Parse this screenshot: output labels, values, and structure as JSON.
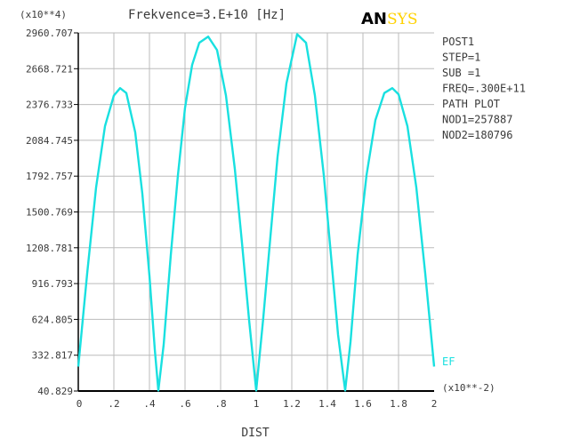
{
  "header": {
    "scale_label": "(x10**4)",
    "title": "Frekvence=3.E+10 [Hz]",
    "logo_left": "AN",
    "logo_right": "SYS"
  },
  "info_panel": {
    "lines": [
      "POST1",
      "STEP=1",
      "SUB =1",
      "FREQ=.300E+11",
      "PATH PLOT",
      "NOD1=257887",
      "NOD2=180796"
    ]
  },
  "colors": {
    "curve": "#19e0e0",
    "axis": "#000000",
    "grid": "#bbbbbb",
    "text": "#3a3a3a",
    "logo_dark": "#000000",
    "logo_accent": "#ffd200"
  },
  "chart_data": {
    "type": "line",
    "xlabel": "DIST",
    "x_scale_label": "(x10**-2)",
    "xlim": [
      0,
      2
    ],
    "ylim": [
      40.829,
      2960.707
    ],
    "x_ticks": [
      0,
      0.2,
      0.4,
      0.6,
      0.8,
      1.0,
      1.2,
      1.4,
      1.6,
      1.8,
      2.0
    ],
    "x_tick_labels": [
      "0",
      ".2",
      ".4",
      ".6",
      ".8",
      "1",
      "1.2",
      "1.4",
      "1.6",
      "1.8",
      "2"
    ],
    "y_ticks": [
      40.829,
      332.817,
      624.805,
      916.793,
      1208.781,
      1500.769,
      1792.757,
      2084.745,
      2376.733,
      2668.721,
      2960.707
    ],
    "y_tick_labels": [
      "40.829",
      "332.817",
      "624.805",
      "916.793",
      "1208.781",
      "1500.769",
      "1792.757",
      "2084.745",
      "2376.733",
      "2668.721",
      "2960.707"
    ],
    "grid": true,
    "series": [
      {
        "name": "EF",
        "x": [
          0,
          0.05,
          0.1,
          0.15,
          0.2,
          0.235,
          0.27,
          0.32,
          0.36,
          0.4,
          0.43,
          0.45,
          0.48,
          0.52,
          0.56,
          0.6,
          0.64,
          0.68,
          0.73,
          0.78,
          0.83,
          0.88,
          0.92,
          0.96,
          1.0,
          1.04,
          1.08,
          1.12,
          1.17,
          1.23,
          1.28,
          1.33,
          1.38,
          1.42,
          1.46,
          1.5,
          1.53,
          1.57,
          1.62,
          1.67,
          1.72,
          1.765,
          1.8,
          1.85,
          1.9,
          1.95,
          2.0
        ],
        "values": [
          240,
          1000,
          1700,
          2200,
          2450,
          2510,
          2470,
          2150,
          1650,
          980,
          380,
          45,
          420,
          1150,
          1800,
          2350,
          2700,
          2880,
          2930,
          2820,
          2450,
          1850,
          1250,
          620,
          45,
          640,
          1300,
          1950,
          2550,
          2950,
          2880,
          2450,
          1800,
          1150,
          500,
          45,
          440,
          1150,
          1800,
          2250,
          2470,
          2510,
          2460,
          2200,
          1700,
          1000,
          240
        ]
      }
    ]
  }
}
